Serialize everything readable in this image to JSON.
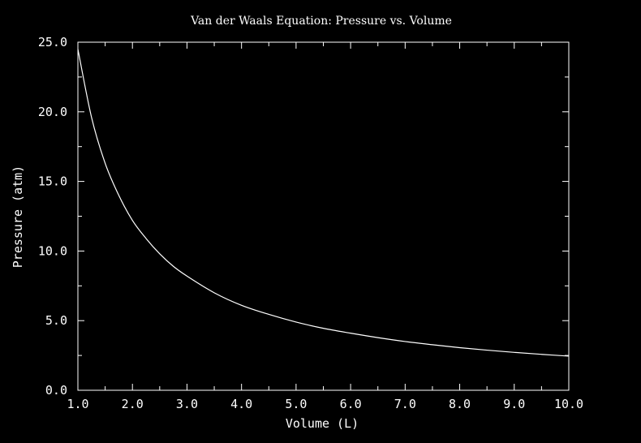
{
  "chart_data": {
    "type": "line",
    "title": "Van der Waals Equation: Pressure vs. Volume",
    "xlabel": "Volume (L)",
    "ylabel": "Pressure (atm)",
    "xlim": [
      1.0,
      10.0
    ],
    "ylim": [
      0.0,
      25.0
    ],
    "grid": false,
    "x_ticks": [
      1.0,
      2.0,
      3.0,
      4.0,
      5.0,
      6.0,
      7.0,
      8.0,
      9.0,
      10.0
    ],
    "x_tick_labels": [
      "1.0",
      "2.0",
      "3.0",
      "4.0",
      "5.0",
      "6.0",
      "7.0",
      "8.0",
      "9.0",
      "10.0"
    ],
    "y_ticks": [
      0.0,
      5.0,
      10.0,
      15.0,
      20.0,
      25.0
    ],
    "y_tick_labels": [
      "0.0",
      "5.0",
      "10.0",
      "15.0",
      "20.0",
      "25.0"
    ],
    "series": [
      {
        "color": "#ffffff",
        "x": [
          1.0,
          1.25,
          1.5,
          1.75,
          2.0,
          2.25,
          2.5,
          2.75,
          3.0,
          3.5,
          4.0,
          4.5,
          5.0,
          5.5,
          6.0,
          6.5,
          7.0,
          7.5,
          8.0,
          8.5,
          9.0,
          9.5,
          10.0
        ],
        "y": [
          24.5,
          19.6,
          16.3,
          14.0,
          12.2,
          10.9,
          9.8,
          8.9,
          8.2,
          7.0,
          6.1,
          5.45,
          4.9,
          4.45,
          4.1,
          3.78,
          3.5,
          3.27,
          3.06,
          2.88,
          2.72,
          2.58,
          2.45
        ]
      }
    ]
  }
}
